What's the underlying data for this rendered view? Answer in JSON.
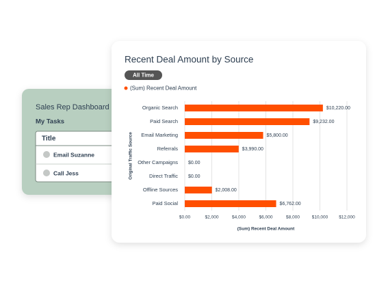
{
  "dashboard": {
    "title": "Sales Rep Dashboard",
    "section": "My Tasks",
    "table": {
      "header": "Title",
      "rows": [
        "Email Suzanne",
        "Call Jess"
      ]
    }
  },
  "filter": "All Time",
  "chart_data": {
    "type": "hbar",
    "title": "Recent Deal Amount by Source",
    "categories": [
      "Organic Search",
      "Paid Search",
      "Email Marketing",
      "Referrals",
      "Other Campaigns",
      "Direct Traffic",
      "Offline Sources",
      "Paid Social"
    ],
    "series": [
      {
        "name": "(Sum) Recent Deal Amount",
        "color": "#ff4f00",
        "values": [
          10220,
          9232,
          5800,
          3990,
          0,
          0,
          2008,
          6762
        ],
        "value_labels": [
          "$10,220.00",
          "$9,232.00",
          "$5,800.00",
          "$3,990.00",
          "$0.00",
          "$0.00",
          "$2,008.00",
          "$6,762.00"
        ]
      }
    ],
    "x_label": "(Sum) Recent Deal Amount",
    "y_label": "Original Traffic Source",
    "xlim": [
      0,
      12000
    ],
    "xticks": [
      {
        "value": 0,
        "label": "$0.00"
      },
      {
        "value": 2000,
        "label": "$2,000"
      },
      {
        "value": 4000,
        "label": "$4,000"
      },
      {
        "value": 6000,
        "label": "$6,000"
      },
      {
        "value": 8000,
        "label": "$8,000"
      },
      {
        "value": 10000,
        "label": "$10,000"
      },
      {
        "value": 12000,
        "label": "$12,000"
      }
    ],
    "grid": true
  }
}
